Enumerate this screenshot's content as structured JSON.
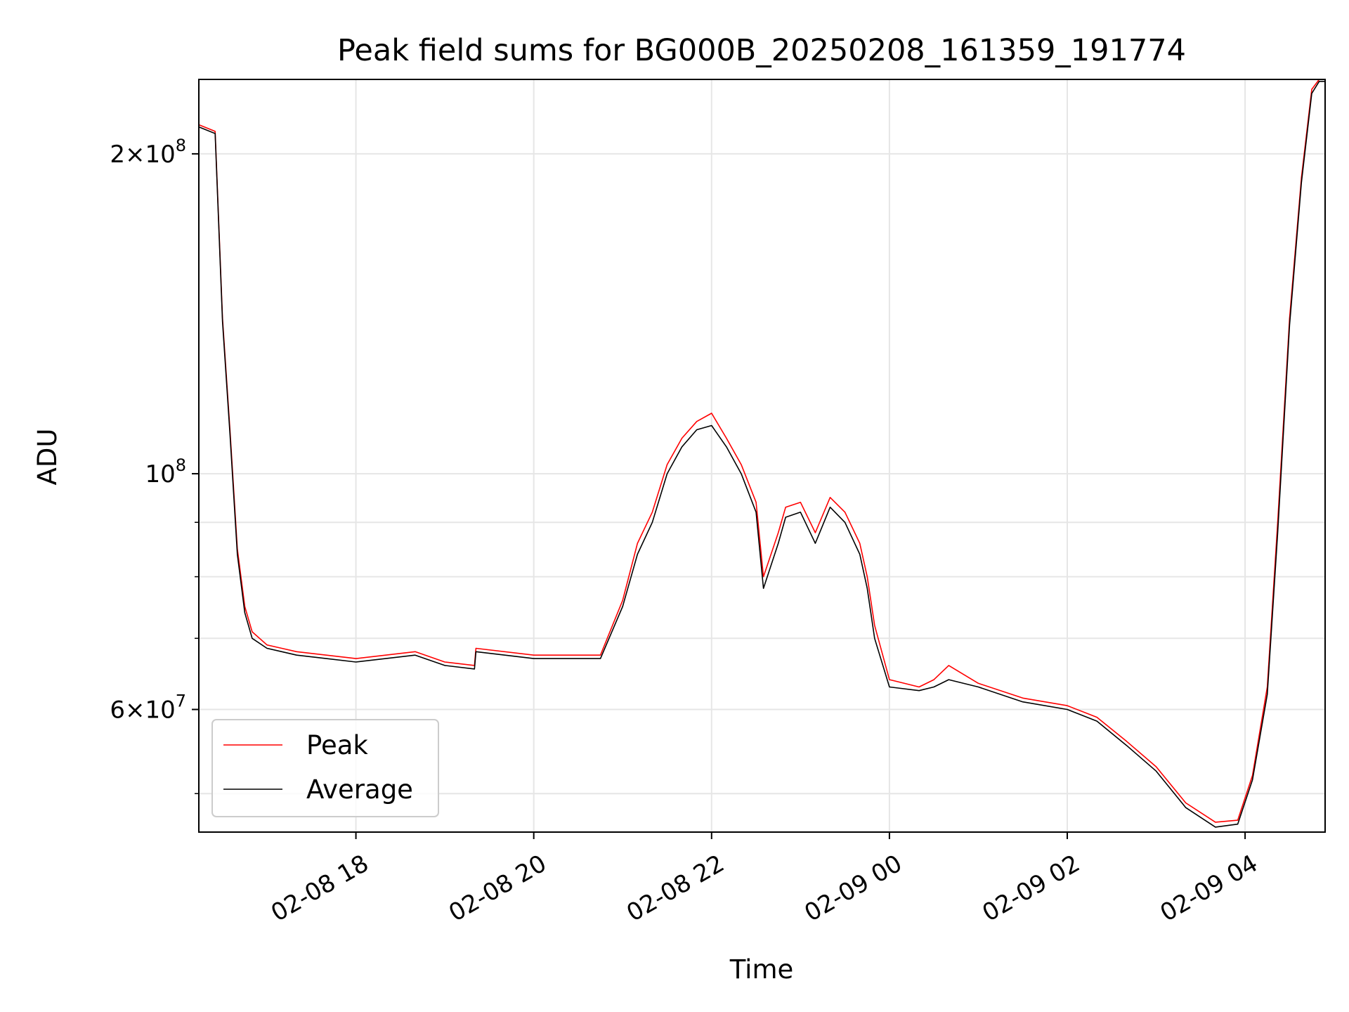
{
  "chart_data": {
    "type": "line",
    "title": "Peak field sums for BG000B_20250208_161359_191774",
    "xlabel": "Time",
    "ylabel": "ADU",
    "yscale": "log",
    "grid": true,
    "legend_placement": "lower-left",
    "xlim": [
      "2025-02-08T16:14",
      "2025-02-09T04:54"
    ],
    "ylim": [
      46000000,
      235000000
    ],
    "x_ticks": [
      {
        "value": "2025-02-08T18:00",
        "label": "02-08 18"
      },
      {
        "value": "2025-02-08T20:00",
        "label": "02-08 20"
      },
      {
        "value": "2025-02-08T22:00",
        "label": "02-08 22"
      },
      {
        "value": "2025-02-09T00:00",
        "label": "02-09 00"
      },
      {
        "value": "2025-02-09T02:00",
        "label": "02-09 02"
      },
      {
        "value": "2025-02-09T04:00",
        "label": "02-09 04"
      }
    ],
    "y_major_ticks": [
      {
        "value": 200000000,
        "mantissa": "2",
        "exponent": "8"
      },
      {
        "value": 100000000,
        "mantissa": "",
        "exponent": "8"
      },
      {
        "value": 60000000,
        "mantissa": "6",
        "exponent": "7"
      }
    ],
    "y_minor_ticks": [
      50000000,
      70000000,
      80000000,
      90000000
    ],
    "series": [
      {
        "name": "Peak",
        "color": "#ff0000",
        "x": [
          "2025-02-08T16:14",
          "2025-02-08T16:25",
          "2025-02-08T16:30",
          "2025-02-08T16:35",
          "2025-02-08T16:40",
          "2025-02-08T16:45",
          "2025-02-08T16:50",
          "2025-02-08T17:00",
          "2025-02-08T17:10",
          "2025-02-08T17:20",
          "2025-02-08T17:40",
          "2025-02-08T18:00",
          "2025-02-08T18:40",
          "2025-02-08T19:00",
          "2025-02-08T19:20",
          "2025-02-08T19:21",
          "2025-02-08T20:00",
          "2025-02-08T20:45",
          "2025-02-08T21:00",
          "2025-02-08T21:10",
          "2025-02-08T21:20",
          "2025-02-08T21:30",
          "2025-02-08T21:40",
          "2025-02-08T21:50",
          "2025-02-08T22:00",
          "2025-02-08T22:10",
          "2025-02-08T22:20",
          "2025-02-08T22:30",
          "2025-02-08T22:35",
          "2025-02-08T22:45",
          "2025-02-08T22:50",
          "2025-02-08T23:00",
          "2025-02-08T23:10",
          "2025-02-08T23:20",
          "2025-02-08T23:30",
          "2025-02-08T23:40",
          "2025-02-08T23:45",
          "2025-02-08T23:50",
          "2025-02-09T00:00",
          "2025-02-09T00:20",
          "2025-02-09T00:30",
          "2025-02-09T00:40",
          "2025-02-09T01:00",
          "2025-02-09T01:30",
          "2025-02-09T02:00",
          "2025-02-09T02:20",
          "2025-02-09T02:40",
          "2025-02-09T03:00",
          "2025-02-09T03:20",
          "2025-02-09T03:40",
          "2025-02-09T03:55",
          "2025-02-09T04:05",
          "2025-02-09T04:15",
          "2025-02-09T04:22",
          "2025-02-09T04:30",
          "2025-02-09T04:38",
          "2025-02-09T04:45",
          "2025-02-09T04:50",
          "2025-02-09T04:54"
        ],
        "values": [
          213000000,
          210000000,
          140000000,
          110000000,
          85000000,
          75000000,
          71000000,
          69000000,
          68500000,
          68000000,
          67500000,
          67000000,
          68000000,
          66500000,
          66000000,
          68500000,
          67500000,
          67500000,
          76000000,
          86000000,
          92000000,
          102000000,
          108000000,
          112000000,
          114000000,
          108000000,
          102000000,
          94000000,
          80000000,
          88000000,
          93000000,
          94000000,
          88000000,
          95000000,
          92000000,
          86000000,
          80000000,
          72000000,
          64000000,
          63000000,
          64000000,
          66000000,
          63500000,
          61500000,
          60500000,
          59000000,
          56000000,
          53000000,
          49000000,
          47000000,
          47200000,
          52000000,
          63000000,
          90000000,
          140000000,
          190000000,
          230000000,
          235000000,
          235000000
        ]
      },
      {
        "name": "Average",
        "color": "#000000",
        "x": [
          "2025-02-08T16:14",
          "2025-02-08T16:25",
          "2025-02-08T16:30",
          "2025-02-08T16:35",
          "2025-02-08T16:40",
          "2025-02-08T16:45",
          "2025-02-08T16:50",
          "2025-02-08T17:00",
          "2025-02-08T17:10",
          "2025-02-08T17:20",
          "2025-02-08T17:40",
          "2025-02-08T18:00",
          "2025-02-08T18:40",
          "2025-02-08T19:00",
          "2025-02-08T19:20",
          "2025-02-08T19:21",
          "2025-02-08T20:00",
          "2025-02-08T20:45",
          "2025-02-08T21:00",
          "2025-02-08T21:10",
          "2025-02-08T21:20",
          "2025-02-08T21:30",
          "2025-02-08T21:40",
          "2025-02-08T21:50",
          "2025-02-08T22:00",
          "2025-02-08T22:10",
          "2025-02-08T22:20",
          "2025-02-08T22:30",
          "2025-02-08T22:35",
          "2025-02-08T22:45",
          "2025-02-08T22:50",
          "2025-02-08T23:00",
          "2025-02-08T23:10",
          "2025-02-08T23:20",
          "2025-02-08T23:30",
          "2025-02-08T23:40",
          "2025-02-08T23:45",
          "2025-02-08T23:50",
          "2025-02-09T00:00",
          "2025-02-09T00:20",
          "2025-02-09T00:30",
          "2025-02-09T00:40",
          "2025-02-09T01:00",
          "2025-02-09T01:30",
          "2025-02-09T02:00",
          "2025-02-09T02:20",
          "2025-02-09T02:40",
          "2025-02-09T03:00",
          "2025-02-09T03:20",
          "2025-02-09T03:40",
          "2025-02-09T03:55",
          "2025-02-09T04:05",
          "2025-02-09T04:15",
          "2025-02-09T04:22",
          "2025-02-09T04:30",
          "2025-02-09T04:38",
          "2025-02-09T04:45",
          "2025-02-09T04:50",
          "2025-02-09T04:54"
        ],
        "values": [
          212000000,
          209000000,
          139000000,
          109000000,
          84000000,
          74000000,
          70000000,
          68500000,
          68000000,
          67500000,
          67000000,
          66500000,
          67500000,
          66000000,
          65500000,
          68000000,
          67000000,
          67000000,
          75000000,
          84000000,
          90000000,
          100000000,
          106000000,
          110000000,
          111000000,
          106000000,
          100000000,
          92000000,
          78000000,
          86000000,
          91000000,
          92000000,
          86000000,
          93000000,
          90000000,
          84000000,
          78000000,
          70000000,
          63000000,
          62500000,
          63000000,
          64000000,
          63000000,
          61000000,
          60000000,
          58500000,
          55500000,
          52500000,
          48500000,
          46500000,
          46800000,
          51500000,
          62000000,
          88000000,
          138000000,
          188000000,
          228000000,
          234000000,
          234000000
        ]
      }
    ]
  }
}
